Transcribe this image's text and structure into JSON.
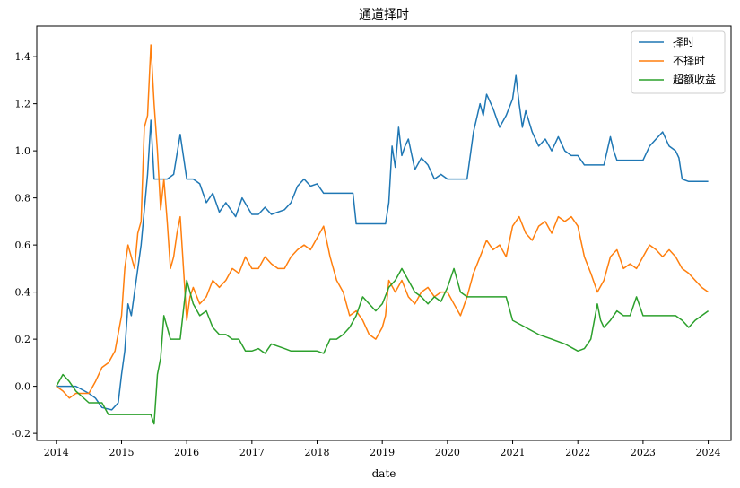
{
  "chart_data": {
    "type": "line",
    "title": "通道择时",
    "xlabel": "date",
    "ylabel": "",
    "xlim": [
      2013.7,
      2024.35
    ],
    "ylim": [
      -0.23,
      1.53
    ],
    "x_ticks": [
      "2014",
      "2015",
      "2016",
      "2017",
      "2018",
      "2019",
      "2020",
      "2021",
      "2022",
      "2023",
      "2024"
    ],
    "y_ticks": [
      "-0.2",
      "0.0",
      "0.2",
      "0.4",
      "0.6",
      "0.8",
      "1.0",
      "1.2",
      "1.4"
    ],
    "grid": false,
    "legend_position": "top-right",
    "series": [
      {
        "name": "择时",
        "color": "#1f77b4",
        "x": [
          2014.0,
          2014.3,
          2014.5,
          2014.6,
          2014.7,
          2014.85,
          2014.95,
          2015.0,
          2015.05,
          2015.1,
          2015.15,
          2015.2,
          2015.3,
          2015.35,
          2015.4,
          2015.45,
          2015.5,
          2015.55,
          2015.6,
          2015.7,
          2015.8,
          2015.9,
          2016.0,
          2016.05,
          2016.1,
          2016.2,
          2016.3,
          2016.4,
          2016.5,
          2016.6,
          2016.75,
          2016.85,
          2017.0,
          2017.1,
          2017.2,
          2017.3,
          2017.5,
          2017.6,
          2017.7,
          2017.8,
          2017.9,
          2018.0,
          2018.1,
          2018.3,
          2018.55,
          2018.6,
          2018.8,
          2019.05,
          2019.1,
          2019.15,
          2019.2,
          2019.25,
          2019.3,
          2019.35,
          2019.4,
          2019.5,
          2019.6,
          2019.7,
          2019.8,
          2019.9,
          2020.0,
          2020.1,
          2020.3,
          2020.4,
          2020.5,
          2020.55,
          2020.6,
          2020.7,
          2020.8,
          2020.9,
          2021.0,
          2021.05,
          2021.1,
          2021.15,
          2021.2,
          2021.3,
          2021.4,
          2021.5,
          2021.6,
          2021.7,
          2021.8,
          2021.9,
          2022.0,
          2022.1,
          2022.2,
          2022.3,
          2022.4,
          2022.5,
          2022.55,
          2022.6,
          2022.7,
          2022.8,
          2022.9,
          2023.0,
          2023.1,
          2023.2,
          2023.3,
          2023.4,
          2023.5,
          2023.55,
          2023.6,
          2023.7,
          2023.9,
          2024.0
        ],
        "values": [
          0.0,
          0.0,
          -0.03,
          -0.05,
          -0.09,
          -0.1,
          -0.07,
          0.05,
          0.15,
          0.35,
          0.3,
          0.4,
          0.6,
          0.75,
          0.9,
          1.13,
          0.88,
          0.88,
          0.88,
          0.88,
          0.9,
          1.07,
          0.88,
          0.88,
          0.88,
          0.86,
          0.78,
          0.82,
          0.74,
          0.78,
          0.72,
          0.8,
          0.73,
          0.73,
          0.76,
          0.73,
          0.75,
          0.78,
          0.85,
          0.88,
          0.85,
          0.86,
          0.82,
          0.82,
          0.82,
          0.69,
          0.69,
          0.69,
          0.78,
          1.02,
          0.93,
          1.1,
          0.98,
          1.02,
          1.05,
          0.92,
          0.97,
          0.94,
          0.88,
          0.9,
          0.88,
          0.88,
          0.88,
          1.08,
          1.2,
          1.15,
          1.24,
          1.18,
          1.1,
          1.15,
          1.22,
          1.32,
          1.2,
          1.1,
          1.17,
          1.08,
          1.02,
          1.05,
          1.0,
          1.06,
          1.0,
          0.98,
          0.98,
          0.94,
          0.94,
          0.94,
          0.94,
          1.06,
          1.0,
          0.96,
          0.96,
          0.96,
          0.96,
          0.96,
          1.02,
          1.05,
          1.08,
          1.02,
          1.0,
          0.97,
          0.88,
          0.87,
          0.87,
          0.87
        ]
      },
      {
        "name": "不择时",
        "color": "#ff7f0e",
        "x": [
          2014.0,
          2014.1,
          2014.2,
          2014.3,
          2014.5,
          2014.6,
          2014.7,
          2014.8,
          2014.9,
          2015.0,
          2015.05,
          2015.1,
          2015.15,
          2015.2,
          2015.25,
          2015.3,
          2015.35,
          2015.4,
          2015.45,
          2015.5,
          2015.55,
          2015.6,
          2015.65,
          2015.7,
          2015.75,
          2015.8,
          2015.85,
          2015.9,
          2016.0,
          2016.05,
          2016.1,
          2016.2,
          2016.3,
          2016.4,
          2016.5,
          2016.6,
          2016.7,
          2016.8,
          2016.9,
          2017.0,
          2017.1,
          2017.2,
          2017.3,
          2017.4,
          2017.5,
          2017.6,
          2017.7,
          2017.8,
          2017.9,
          2018.0,
          2018.1,
          2018.2,
          2018.3,
          2018.4,
          2018.5,
          2018.6,
          2018.7,
          2018.8,
          2018.9,
          2019.0,
          2019.05,
          2019.1,
          2019.2,
          2019.3,
          2019.4,
          2019.5,
          2019.6,
          2019.7,
          2019.8,
          2019.9,
          2020.0,
          2020.1,
          2020.2,
          2020.3,
          2020.4,
          2020.5,
          2020.6,
          2020.7,
          2020.8,
          2020.9,
          2021.0,
          2021.1,
          2021.2,
          2021.3,
          2021.4,
          2021.5,
          2021.6,
          2021.7,
          2021.8,
          2021.9,
          2022.0,
          2022.1,
          2022.2,
          2022.3,
          2022.4,
          2022.5,
          2022.6,
          2022.7,
          2022.8,
          2022.9,
          2023.0,
          2023.1,
          2023.2,
          2023.3,
          2023.4,
          2023.5,
          2023.6,
          2023.7,
          2023.8,
          2023.9,
          2024.0
        ],
        "values": [
          0.0,
          -0.02,
          -0.05,
          -0.03,
          -0.03,
          0.02,
          0.08,
          0.1,
          0.15,
          0.3,
          0.5,
          0.6,
          0.55,
          0.5,
          0.65,
          0.7,
          1.1,
          1.15,
          1.45,
          1.2,
          1.0,
          0.75,
          0.88,
          0.7,
          0.5,
          0.55,
          0.65,
          0.72,
          0.28,
          0.38,
          0.42,
          0.35,
          0.38,
          0.45,
          0.42,
          0.45,
          0.5,
          0.48,
          0.55,
          0.5,
          0.5,
          0.55,
          0.52,
          0.5,
          0.5,
          0.55,
          0.58,
          0.6,
          0.58,
          0.63,
          0.68,
          0.55,
          0.45,
          0.4,
          0.3,
          0.32,
          0.28,
          0.22,
          0.2,
          0.25,
          0.3,
          0.45,
          0.4,
          0.45,
          0.38,
          0.35,
          0.4,
          0.42,
          0.38,
          0.4,
          0.4,
          0.35,
          0.3,
          0.38,
          0.48,
          0.55,
          0.62,
          0.58,
          0.6,
          0.55,
          0.68,
          0.72,
          0.65,
          0.62,
          0.68,
          0.7,
          0.65,
          0.72,
          0.7,
          0.72,
          0.68,
          0.55,
          0.48,
          0.4,
          0.45,
          0.55,
          0.58,
          0.5,
          0.52,
          0.5,
          0.55,
          0.6,
          0.58,
          0.55,
          0.58,
          0.55,
          0.5,
          0.48,
          0.45,
          0.42,
          0.4
        ]
      },
      {
        "name": "超额收益",
        "color": "#2ca02c",
        "x": [
          2014.0,
          2014.1,
          2014.2,
          2014.3,
          2014.5,
          2014.6,
          2014.7,
          2014.8,
          2014.9,
          2015.0,
          2015.2,
          2015.4,
          2015.45,
          2015.5,
          2015.55,
          2015.6,
          2015.65,
          2015.7,
          2015.75,
          2015.8,
          2015.85,
          2015.9,
          2016.0,
          2016.05,
          2016.1,
          2016.2,
          2016.3,
          2016.4,
          2016.5,
          2016.6,
          2016.7,
          2016.8,
          2016.9,
          2017.0,
          2017.1,
          2017.2,
          2017.3,
          2017.5,
          2017.6,
          2017.8,
          2018.0,
          2018.1,
          2018.2,
          2018.3,
          2018.4,
          2018.5,
          2018.6,
          2018.7,
          2018.8,
          2018.9,
          2019.0,
          2019.1,
          2019.2,
          2019.3,
          2019.4,
          2019.5,
          2019.6,
          2019.7,
          2019.8,
          2019.9,
          2020.0,
          2020.1,
          2020.2,
          2020.3,
          2020.4,
          2020.5,
          2020.6,
          2020.7,
          2020.8,
          2020.9,
          2021.0,
          2021.2,
          2021.4,
          2021.6,
          2021.8,
          2022.0,
          2022.1,
          2022.2,
          2022.3,
          2022.35,
          2022.4,
          2022.5,
          2022.6,
          2022.7,
          2022.8,
          2022.9,
          2023.0,
          2023.2,
          2023.4,
          2023.5,
          2023.6,
          2023.7,
          2023.8,
          2023.9,
          2024.0
        ],
        "values": [
          0.0,
          0.05,
          0.02,
          -0.02,
          -0.07,
          -0.07,
          -0.07,
          -0.12,
          -0.12,
          -0.12,
          -0.12,
          -0.12,
          -0.12,
          -0.16,
          0.05,
          0.12,
          0.3,
          0.25,
          0.2,
          0.2,
          0.2,
          0.2,
          0.45,
          0.4,
          0.35,
          0.3,
          0.32,
          0.25,
          0.22,
          0.22,
          0.2,
          0.2,
          0.15,
          0.15,
          0.16,
          0.14,
          0.18,
          0.16,
          0.15,
          0.15,
          0.15,
          0.14,
          0.2,
          0.2,
          0.22,
          0.25,
          0.3,
          0.38,
          0.35,
          0.32,
          0.35,
          0.42,
          0.45,
          0.5,
          0.45,
          0.4,
          0.38,
          0.35,
          0.38,
          0.36,
          0.42,
          0.5,
          0.4,
          0.38,
          0.38,
          0.38,
          0.38,
          0.38,
          0.38,
          0.38,
          0.28,
          0.25,
          0.22,
          0.2,
          0.18,
          0.15,
          0.16,
          0.2,
          0.35,
          0.28,
          0.25,
          0.28,
          0.32,
          0.3,
          0.3,
          0.38,
          0.3,
          0.3,
          0.3,
          0.3,
          0.28,
          0.25,
          0.28,
          0.3,
          0.32
        ]
      }
    ]
  }
}
